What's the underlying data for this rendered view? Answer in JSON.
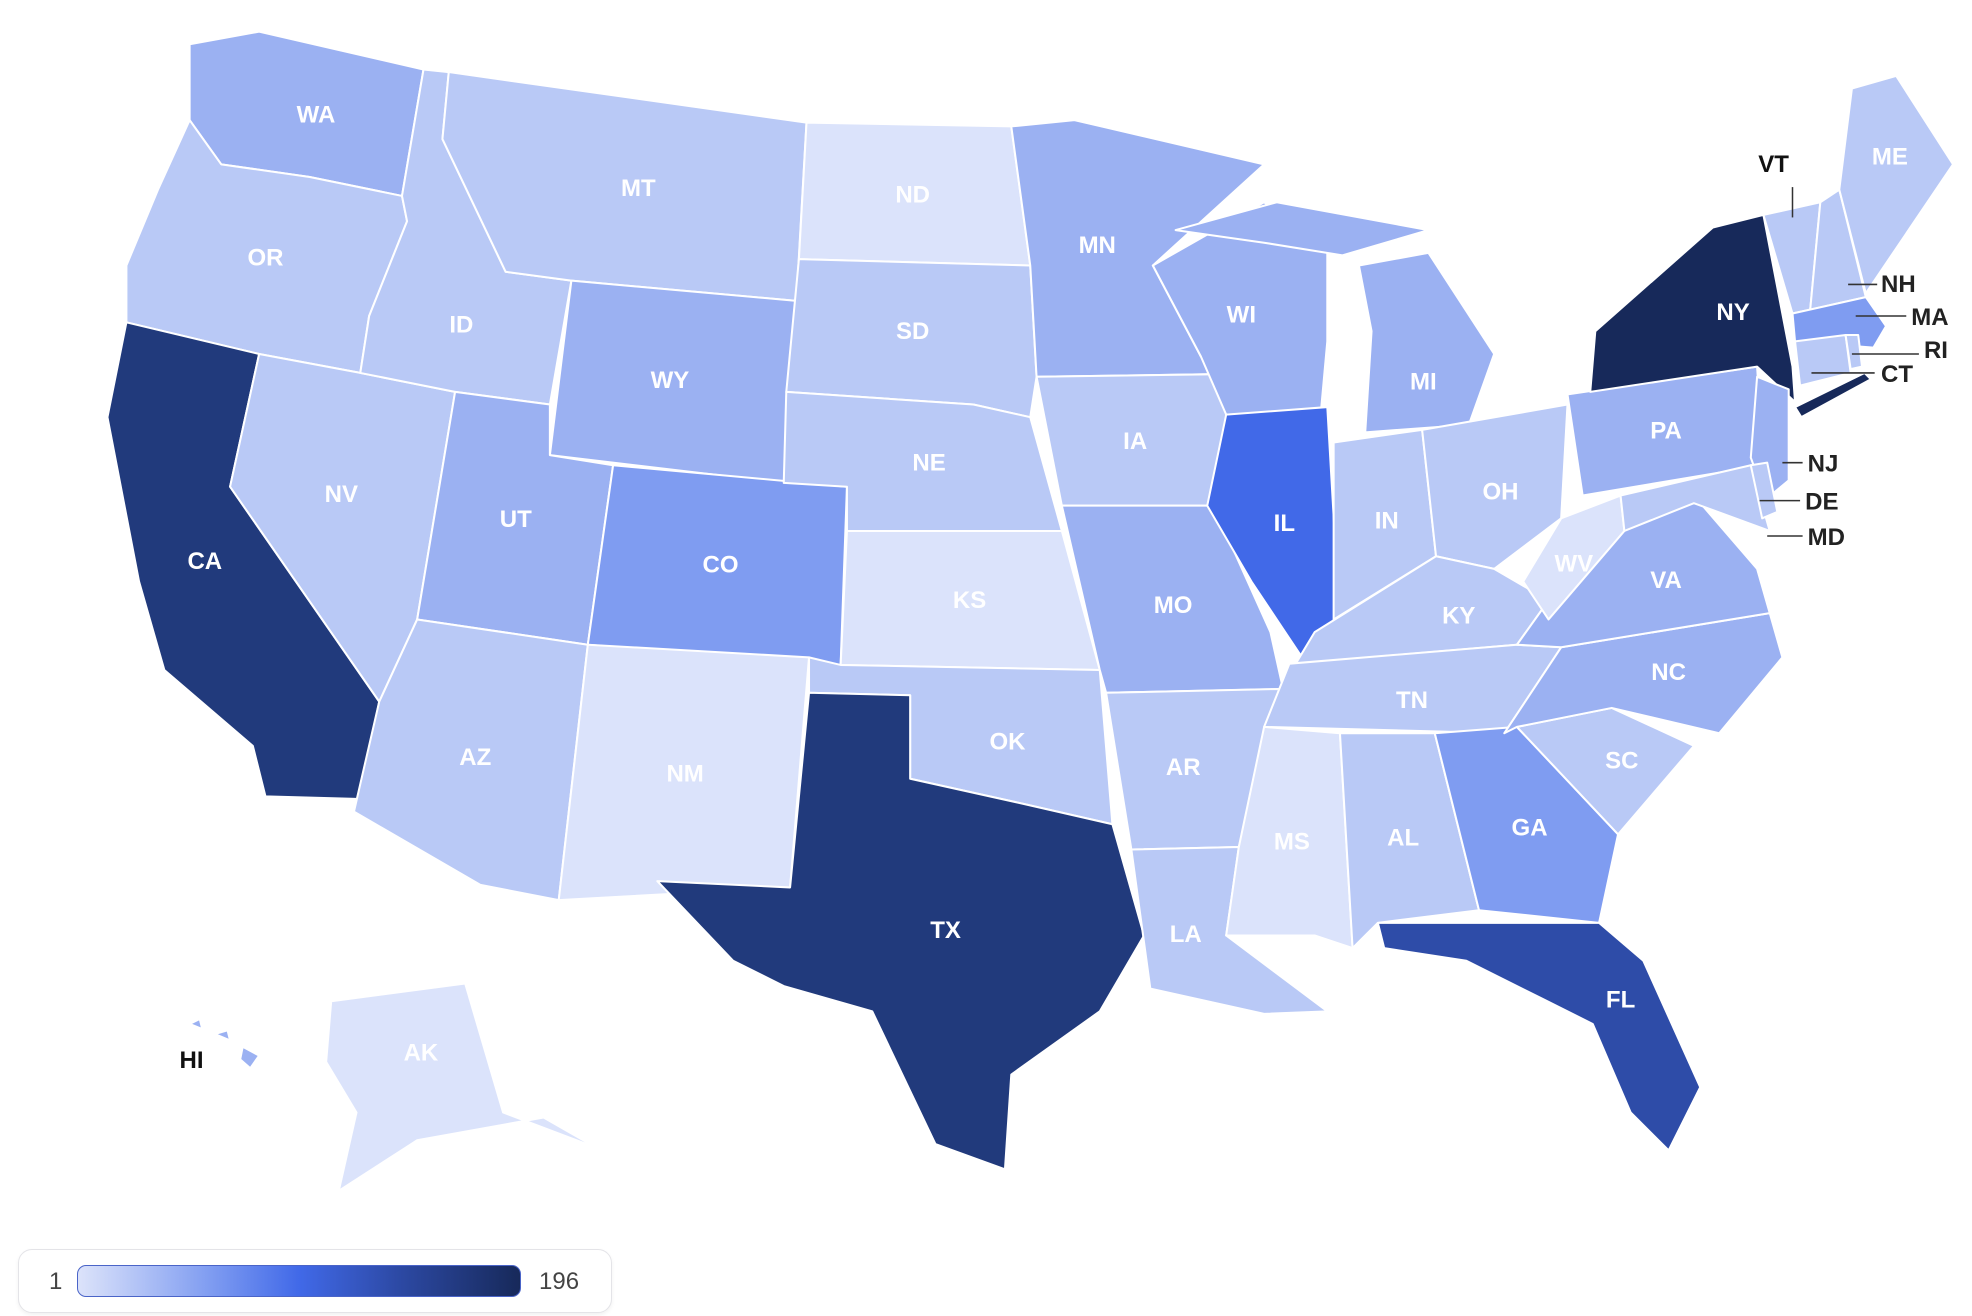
{
  "palette": {
    "lightest": "#dbe3fb",
    "light": "#b9c9f6",
    "mid": "#9bb1f2",
    "mid_high": "#7f9cf1",
    "bright": "#4169e8",
    "strong": "#2e4ca8",
    "dark": "#213a7c",
    "darkest": "#17295a"
  },
  "states": [
    {
      "abbr": "WA",
      "tier": "mid"
    },
    {
      "abbr": "OR",
      "tier": "light"
    },
    {
      "abbr": "CA",
      "tier": "dark"
    },
    {
      "abbr": "NV",
      "tier": "light"
    },
    {
      "abbr": "ID",
      "tier": "light"
    },
    {
      "abbr": "MT",
      "tier": "light"
    },
    {
      "abbr": "WY",
      "tier": "mid"
    },
    {
      "abbr": "UT",
      "tier": "mid"
    },
    {
      "abbr": "AZ",
      "tier": "light"
    },
    {
      "abbr": "CO",
      "tier": "mid_high"
    },
    {
      "abbr": "NM",
      "tier": "lightest"
    },
    {
      "abbr": "ND",
      "tier": "lightest"
    },
    {
      "abbr": "SD",
      "tier": "light"
    },
    {
      "abbr": "NE",
      "tier": "light"
    },
    {
      "abbr": "KS",
      "tier": "lightest"
    },
    {
      "abbr": "OK",
      "tier": "light"
    },
    {
      "abbr": "TX",
      "tier": "dark"
    },
    {
      "abbr": "MN",
      "tier": "mid"
    },
    {
      "abbr": "IA",
      "tier": "light"
    },
    {
      "abbr": "MO",
      "tier": "mid"
    },
    {
      "abbr": "AR",
      "tier": "light"
    },
    {
      "abbr": "LA",
      "tier": "light"
    },
    {
      "abbr": "WI",
      "tier": "mid"
    },
    {
      "abbr": "IL",
      "tier": "bright"
    },
    {
      "abbr": "MI",
      "tier": "mid"
    },
    {
      "abbr": "IN",
      "tier": "light"
    },
    {
      "abbr": "OH",
      "tier": "light"
    },
    {
      "abbr": "KY",
      "tier": "light"
    },
    {
      "abbr": "TN",
      "tier": "light"
    },
    {
      "abbr": "MS",
      "tier": "lightest"
    },
    {
      "abbr": "AL",
      "tier": "light"
    },
    {
      "abbr": "GA",
      "tier": "mid_high"
    },
    {
      "abbr": "FL",
      "tier": "strong"
    },
    {
      "abbr": "SC",
      "tier": "light"
    },
    {
      "abbr": "NC",
      "tier": "mid"
    },
    {
      "abbr": "VA",
      "tier": "mid"
    },
    {
      "abbr": "WV",
      "tier": "lightest"
    },
    {
      "abbr": "PA",
      "tier": "mid"
    },
    {
      "abbr": "NY",
      "tier": "darkest"
    },
    {
      "abbr": "NJ",
      "tier": "mid"
    },
    {
      "abbr": "MD",
      "tier": "light"
    },
    {
      "abbr": "DE",
      "tier": "light"
    },
    {
      "abbr": "VT",
      "tier": "light"
    },
    {
      "abbr": "NH",
      "tier": "light"
    },
    {
      "abbr": "ME",
      "tier": "light"
    },
    {
      "abbr": "MA",
      "tier": "mid_high"
    },
    {
      "abbr": "CT",
      "tier": "light"
    },
    {
      "abbr": "RI",
      "tier": "light"
    },
    {
      "abbr": "AK",
      "tier": "lightest"
    },
    {
      "abbr": "HI",
      "tier": "mid"
    }
  ],
  "legend": {
    "min": "1",
    "max": "196"
  }
}
